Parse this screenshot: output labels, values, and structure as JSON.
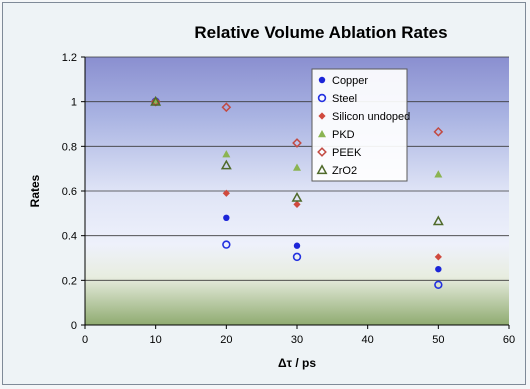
{
  "chart_data": {
    "type": "scatter",
    "title": "Relative Volume Ablation Rates",
    "xlabel": "Δτ / ps",
    "ylabel": "Rates",
    "xlim": [
      0,
      60
    ],
    "ylim": [
      0,
      1.2
    ],
    "xticks": [
      "0",
      "10",
      "20",
      "30",
      "40",
      "50",
      "60"
    ],
    "yticks": [
      "0",
      "0.2",
      "0.4",
      "0.6",
      "0.8",
      "1",
      "1.2"
    ],
    "grid": "horizontal",
    "legend_position": "inside-top-center",
    "series": [
      {
        "name": "Copper",
        "marker": "filled-circle",
        "color": "#1c25d8",
        "points": [
          [
            10,
            1.0
          ],
          [
            20,
            0.48
          ],
          [
            30,
            0.355
          ],
          [
            50,
            0.25
          ]
        ]
      },
      {
        "name": "Steel",
        "marker": "open-circle",
        "color": "#2330e0",
        "points": [
          [
            10,
            1.0
          ],
          [
            20,
            0.36
          ],
          [
            30,
            0.305
          ],
          [
            50,
            0.18
          ]
        ]
      },
      {
        "name": "Silicon undoped",
        "marker": "filled-diamond",
        "color": "#d04a3e",
        "points": [
          [
            10,
            1.0
          ],
          [
            20,
            0.59
          ],
          [
            30,
            0.54
          ],
          [
            50,
            0.305
          ]
        ]
      },
      {
        "name": "PKD",
        "marker": "filled-triangle",
        "color": "#8bb452",
        "points": [
          [
            10,
            1.0
          ],
          [
            20,
            0.765
          ],
          [
            30,
            0.705
          ],
          [
            50,
            0.675
          ]
        ]
      },
      {
        "name": "PEEK",
        "marker": "open-diamond",
        "color": "#c24a42",
        "points": [
          [
            10,
            1.0
          ],
          [
            20,
            0.975
          ],
          [
            30,
            0.815
          ],
          [
            50,
            0.865
          ]
        ]
      },
      {
        "name": "ZrO2",
        "marker": "open-triangle",
        "color": "#4f6a2a",
        "points": [
          [
            10,
            1.0
          ],
          [
            20,
            0.715
          ],
          [
            30,
            0.57
          ],
          [
            50,
            0.465
          ]
        ]
      }
    ]
  }
}
